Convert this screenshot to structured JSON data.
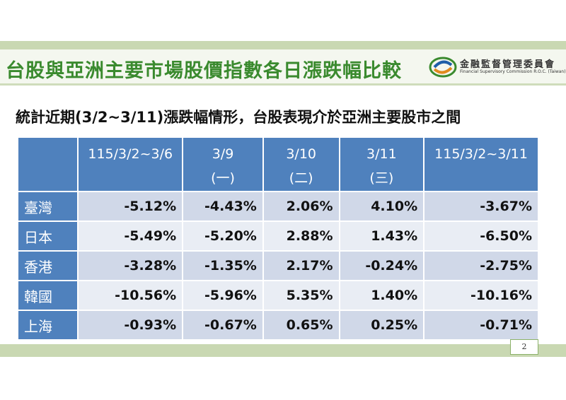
{
  "header": {
    "title": "台股與亞洲主要市場股價指數各日漲跌幅比較",
    "logo": {
      "name_zh": "金融監督管理委員會",
      "name_en": "Financial Supervisory Commission R.O.C. (Taiwan)"
    }
  },
  "subtitle": "統計近期(3/2~3/11)漲跌幅情形，台股表現介於亞洲主要股市之間",
  "table": {
    "columns": [
      {
        "line1": "115/3/2~3/6"
      },
      {
        "line1": "3/9",
        "line2": "(一)"
      },
      {
        "line1": "3/10",
        "line2": "(二)"
      },
      {
        "line1": "3/11",
        "line2": "(三)"
      },
      {
        "line1": "115/3/2~3/11"
      }
    ],
    "rows": [
      [
        "臺灣",
        "-5.12%",
        "-4.43%",
        "2.06%",
        "4.10%",
        "-3.67%"
      ],
      [
        "日本",
        "-5.49%",
        "-5.20%",
        "2.88%",
        "1.43%",
        "-6.50%"
      ],
      [
        "香港",
        "-3.28%",
        "-1.35%",
        "2.17%",
        "-0.24%",
        "-2.75%"
      ],
      [
        "韓國",
        "-10.56%",
        "-5.96%",
        "5.35%",
        "1.40%",
        "-10.16%"
      ],
      [
        "上海",
        "-0.93%",
        "-0.67%",
        "0.65%",
        "0.25%",
        "-0.71%"
      ]
    ]
  },
  "page_number": "2"
}
